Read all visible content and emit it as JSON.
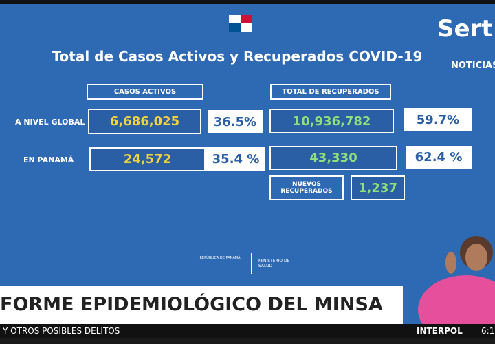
{
  "title": "Total de Casos Activos y Recuperados COVID-19",
  "brand": {
    "logo": "Sert",
    "section": "NOTICIAS"
  },
  "headers": {
    "active": "CASOS ACTIVOS",
    "recovered": "TOTAL DE RECUPERADOS"
  },
  "rows": [
    {
      "label": "A NIVEL GLOBAL",
      "active": "6,686,025",
      "active_pct": "36.5%",
      "recovered": "10,936,782",
      "recovered_pct": "59.7%"
    },
    {
      "label": "EN PANAMÁ",
      "active": "24,572",
      "active_pct": "35.4 %",
      "recovered": "43,330",
      "recovered_pct": "62.4 %"
    }
  ],
  "new_recovered": {
    "label": "NUEVOS RECUPERADOS",
    "value": "1,237"
  },
  "footer_logo": {
    "left": "REPÚBLICA DE PANAMÁ",
    "right": "MINISTERIO DE SALUD"
  },
  "lower_third": "FORME EPIDEMIOLÓGICO DEL MINSA",
  "ticker": {
    "text": "Y OTROS POSIBLES DELITOS",
    "source": "INTERPOL",
    "time": "6:1"
  }
}
